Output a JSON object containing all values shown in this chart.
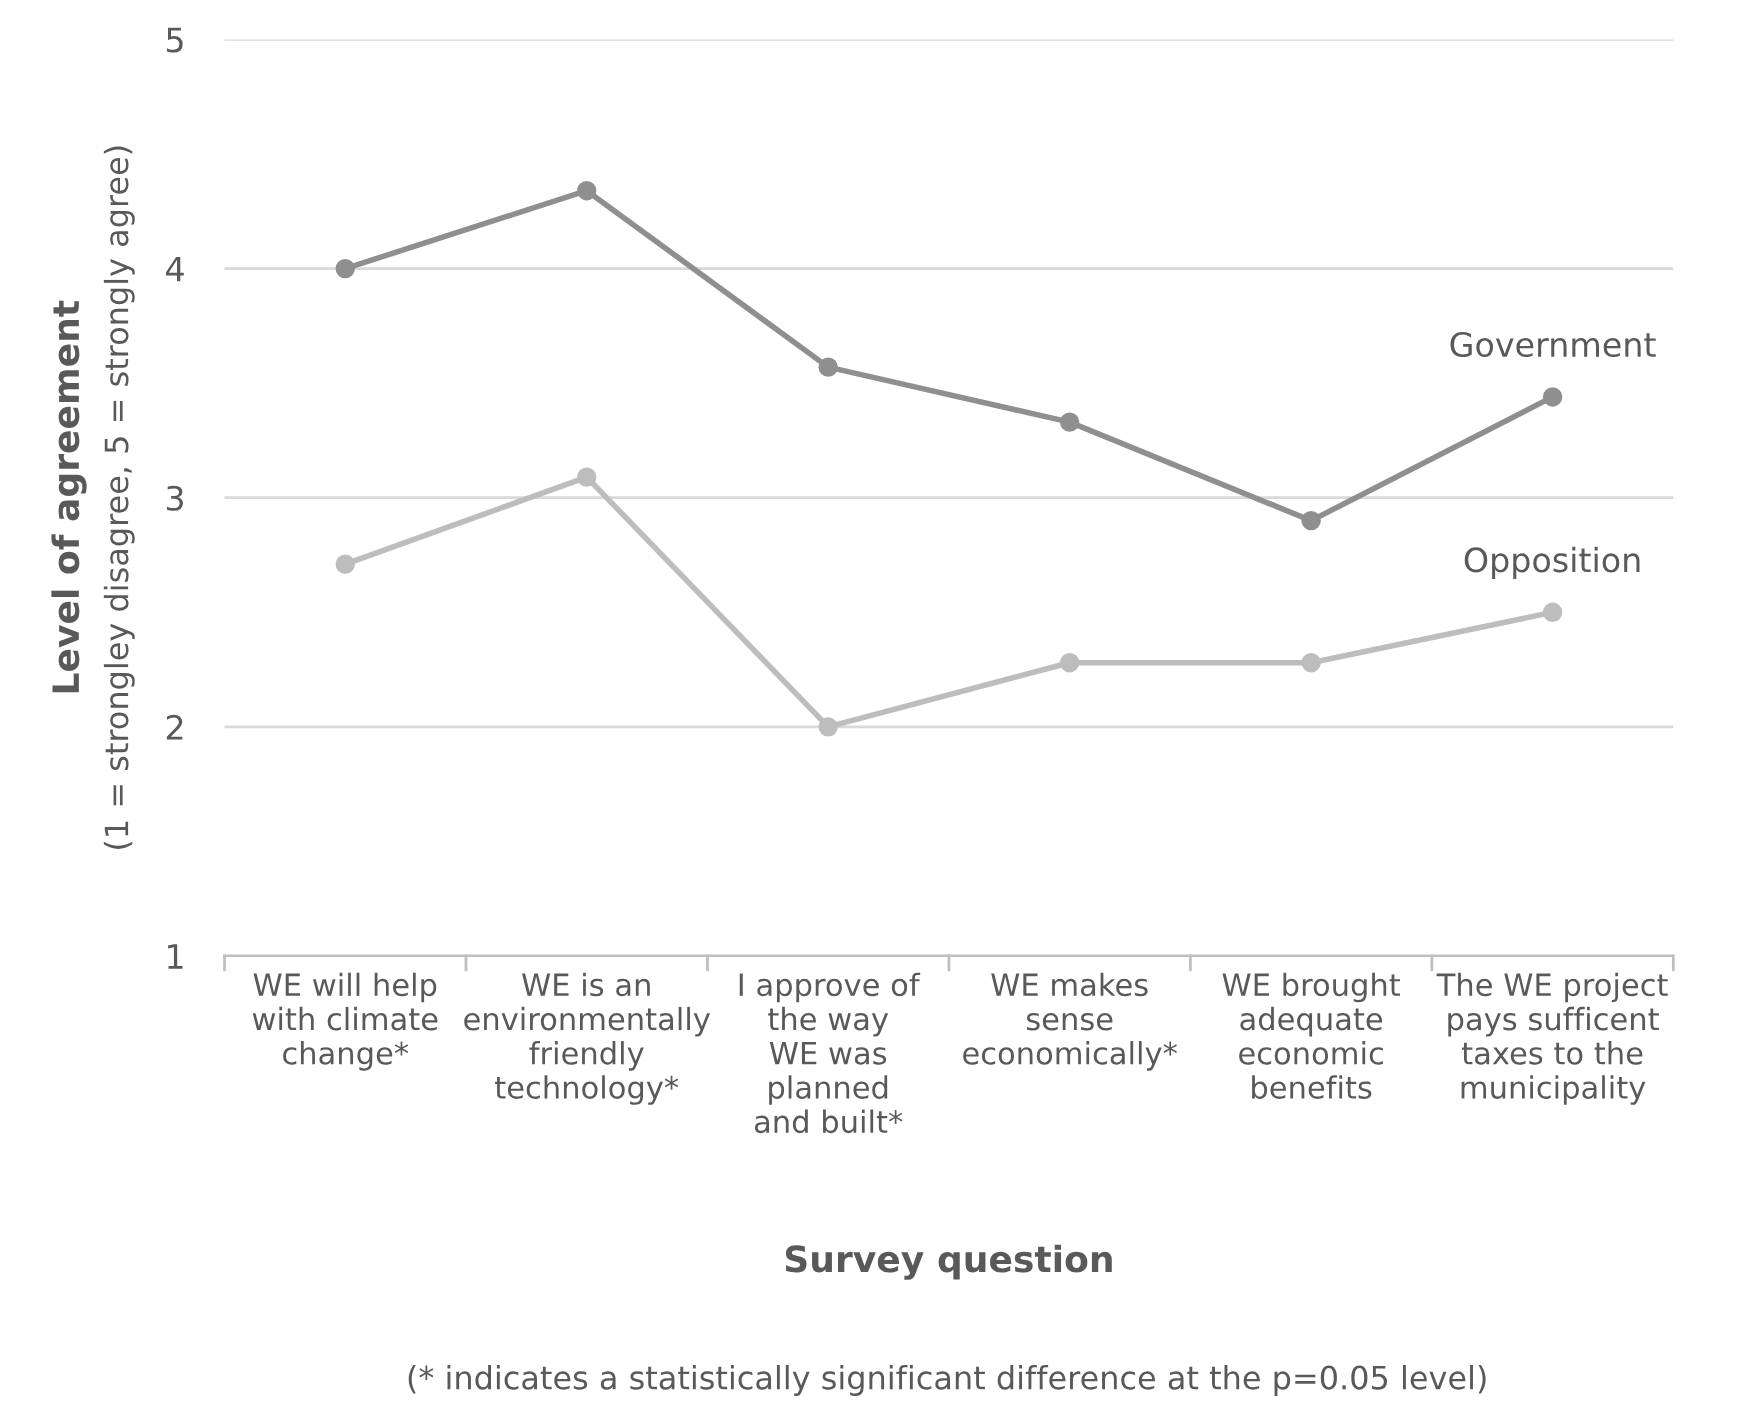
{
  "chart_data": {
    "type": "line",
    "categories": [
      "WE will help\nwith climate\nchange*",
      "WE is an\nenvironmentally\nfriendly\ntechnology*",
      "I approve of\nthe way\nWE was\nplanned\nand built*",
      "WE makes\nsense\neconomically*",
      "WE brought\nadequate\neconomic\nbenefits",
      "The WE project\npays sufficent\ntaxes to the\nmunicipality"
    ],
    "series": [
      {
        "name": "Government",
        "color": "#8f8f8f",
        "values": [
          4.0,
          4.34,
          3.57,
          3.33,
          2.9,
          3.44
        ]
      },
      {
        "name": "Opposition",
        "color": "#bdbdbd",
        "values": [
          2.71,
          3.09,
          2.0,
          2.28,
          2.28,
          2.5
        ]
      }
    ],
    "xlabel": "Survey question",
    "ylabel": "Level of agreement",
    "annotations": [
      "(1 = strongley disagree, 5 = strongly agree)",
      "(* indicates a statistically significant difference at the p=0.05 level)"
    ],
    "ylim": [
      1,
      5
    ],
    "yticks": [
      1,
      2,
      3,
      4,
      5
    ],
    "grid": "y",
    "marker": "circle",
    "line_style": "solid",
    "legend": false
  }
}
